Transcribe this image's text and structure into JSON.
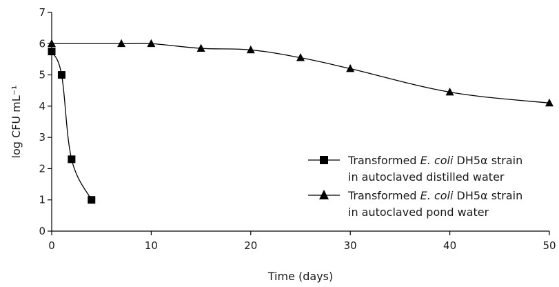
{
  "chart_data": {
    "type": "line",
    "xlabel": "Time (days)",
    "ylabel": "log CFU mL⁻¹",
    "xlim": [
      0,
      50
    ],
    "ylim": [
      0,
      7
    ],
    "x_ticks": [
      "0",
      "10",
      "20",
      "30",
      "40",
      "50"
    ],
    "y_ticks": [
      "0",
      "1",
      "2",
      "3",
      "4",
      "5",
      "6",
      "7"
    ],
    "grid": false,
    "legend_position": "right",
    "series": [
      {
        "legend_line1_pre": "Transformed ",
        "legend_line1_italic": "E. coli",
        "legend_line1_post": " DH5α strain",
        "legend_line2": "in autoclaved distilled water",
        "marker": "square",
        "color": "#000000",
        "points": [
          {
            "x": 0,
            "y": 5.75
          },
          {
            "x": 1,
            "y": 5.0
          },
          {
            "x": 2,
            "y": 2.3
          },
          {
            "x": 4,
            "y": 1.0
          }
        ]
      },
      {
        "legend_line1_pre": "Transformed ",
        "legend_line1_italic": "E. coli",
        "legend_line1_post": " DH5α strain",
        "legend_line2": "in autoclaved pond water",
        "marker": "triangle",
        "color": "#000000",
        "points": [
          {
            "x": 0,
            "y": 6.0
          },
          {
            "x": 7,
            "y": 6.0
          },
          {
            "x": 10,
            "y": 6.0
          },
          {
            "x": 15,
            "y": 5.85
          },
          {
            "x": 20,
            "y": 5.8
          },
          {
            "x": 25,
            "y": 5.55
          },
          {
            "x": 30,
            "y": 5.2
          },
          {
            "x": 40,
            "y": 4.45
          },
          {
            "x": 50,
            "y": 4.1
          }
        ]
      }
    ]
  }
}
